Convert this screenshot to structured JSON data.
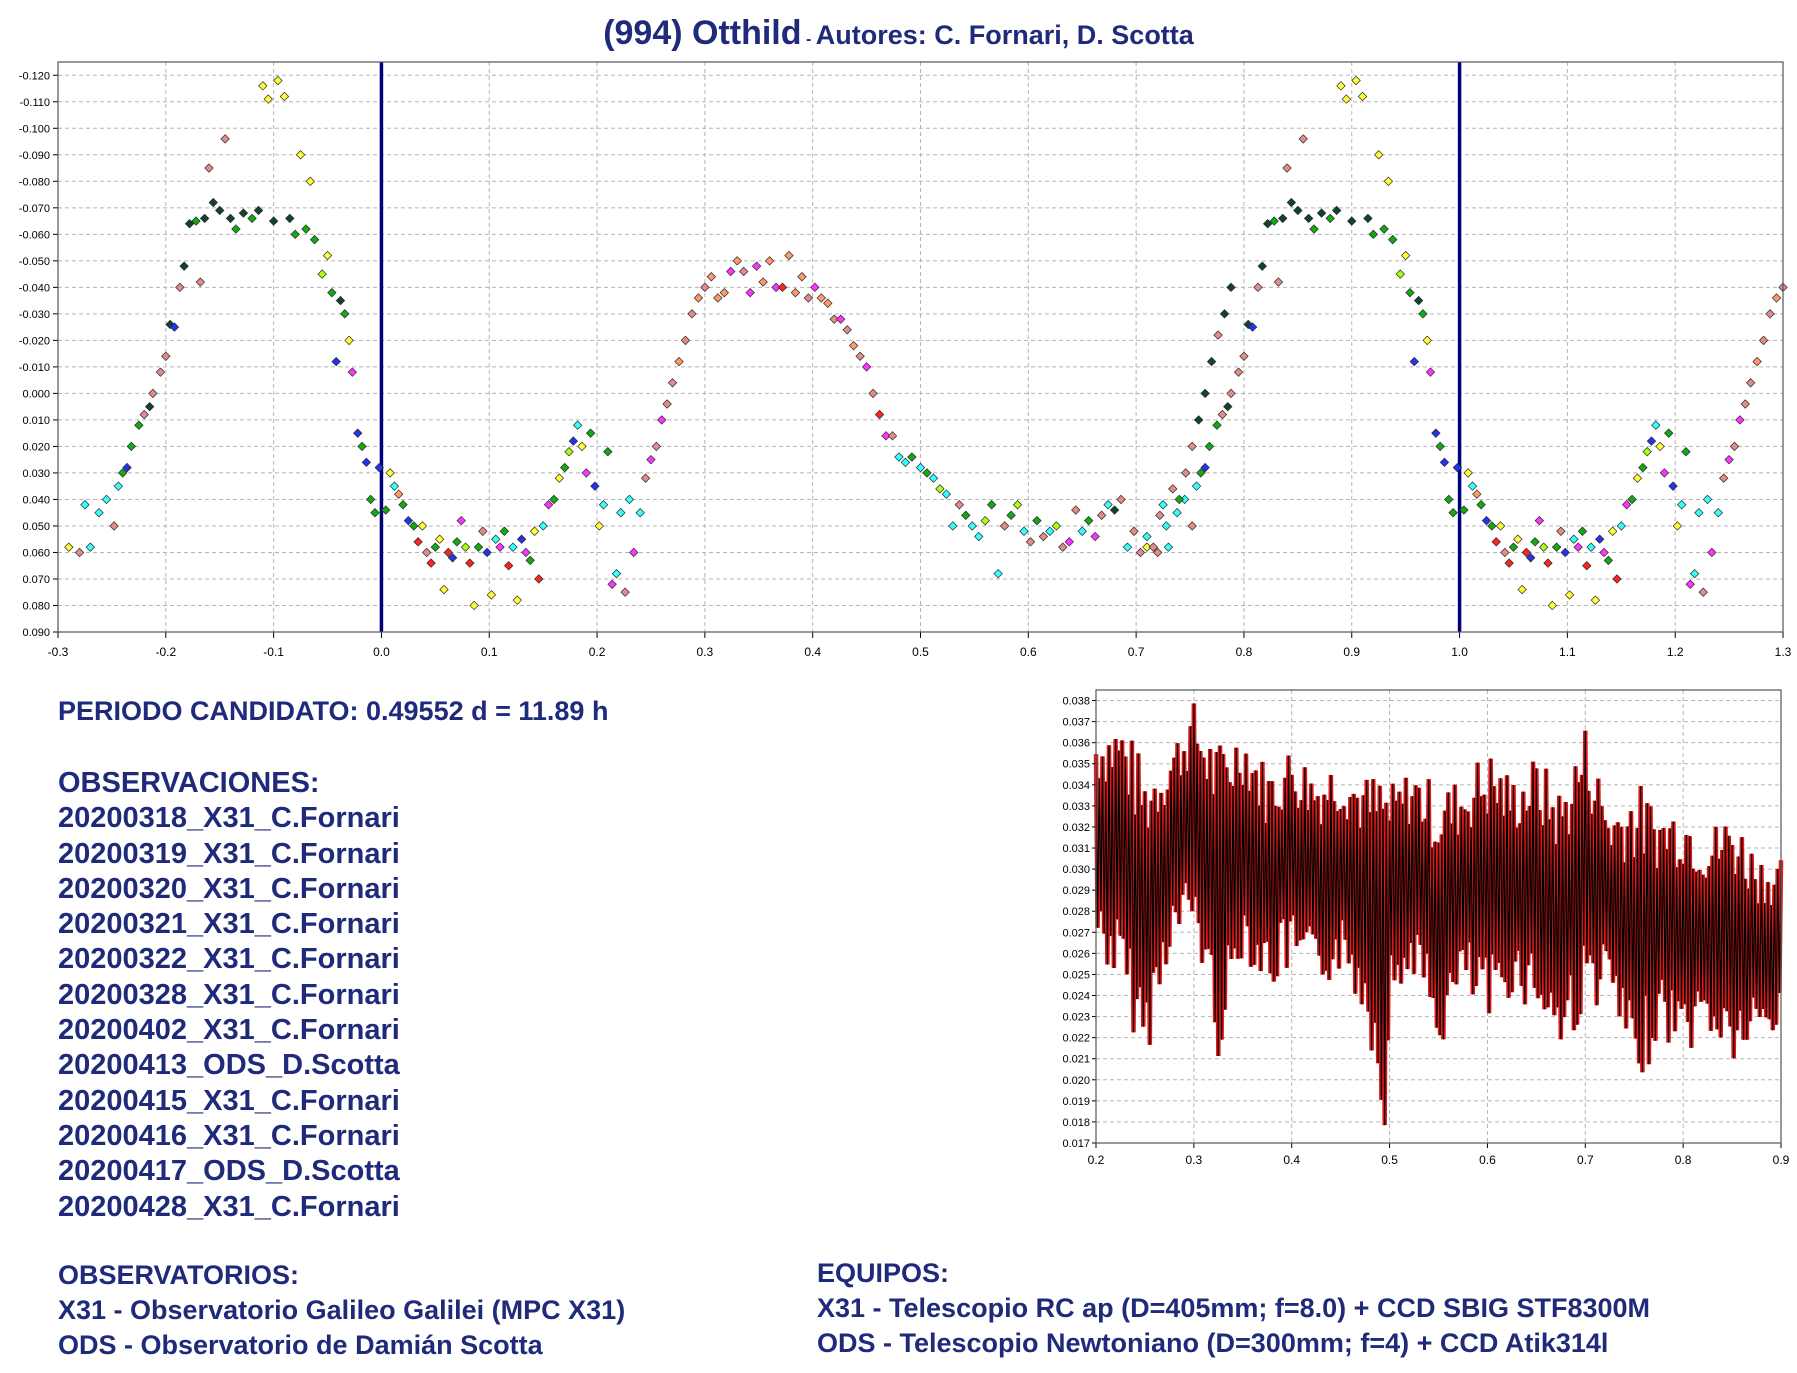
{
  "header": {
    "title_main": "(994) Otthild",
    "title_sub": "Autores: C. Fornari, D. Scotta"
  },
  "text": {
    "period": "PERIODO CANDIDATO: 0.49552 d = 11.89 h",
    "observations_heading": "OBSERVACIONES:",
    "observations": [
      "20200318_X31_C.Fornari",
      "20200319_X31_C.Fornari",
      "20200320_X31_C.Fornari",
      "20200321_X31_C.Fornari",
      "20200322_X31_C.Fornari",
      "20200328_X31_C.Fornari",
      "20200402_X31_C.Fornari",
      "20200413_ODS_D.Scotta",
      "20200415_X31_C.Fornari",
      "20200416_X31_C.Fornari",
      "20200417_ODS_D.Scotta",
      "20200428_X31_C.Fornari"
    ],
    "observatories_heading": "OBSERVATORIOS:",
    "observatories": [
      "X31 - Observatorio Galileo Galilei (MPC X31)",
      "ODS - Observatorio de Damián Scotta"
    ],
    "equipment_heading": "EQUIPOS:",
    "equipment": [
      "X31 - Telescopio RC ap (D=405mm; f=8.0) + CCD SBIG STF8300M",
      "ODS - Telescopio Newtoniano (D=300mm; f=4) + CCD Atik314l"
    ]
  },
  "colors": {
    "text": "#1f2a7a",
    "phase_marker_line": "#00007a",
    "series": [
      "#ffff33",
      "#ff33ff",
      "#33ffff",
      "#e38a8a",
      "#ff2222",
      "#2233ee",
      "#11aa11",
      "#11442e",
      "#ff9966",
      "#aaff11"
    ],
    "periodogram_points": "#e01a1a",
    "periodogram_line": "#000000"
  },
  "chart_data": [
    {
      "type": "scatter",
      "name": "phased-lightcurve",
      "xlim": [
        -0.3,
        1.3
      ],
      "ylim": [
        0.09,
        -0.125
      ],
      "y_inverted": true,
      "grid": true,
      "xticks": [
        -0.3,
        -0.2,
        -0.1,
        0.0,
        0.1,
        0.2,
        0.3,
        0.4,
        0.5,
        0.6,
        0.7,
        0.8,
        0.9,
        1.0,
        1.1,
        1.2,
        1.3
      ],
      "xtick_labels": [
        "-0.3",
        "-0.2",
        "-0.1",
        "0.0",
        "0.1",
        "0.2",
        "0.3",
        "0.4",
        "0.5",
        "0.6",
        "0.7",
        "0.8",
        "0.9",
        "1.0",
        "1.1",
        "1.2",
        "1.3"
      ],
      "yticks": [
        -0.12,
        -0.11,
        -0.1,
        -0.09,
        -0.08,
        -0.07,
        -0.06,
        -0.05,
        -0.04,
        -0.03,
        -0.02,
        -0.01,
        0.0,
        0.01,
        0.02,
        0.03,
        0.04,
        0.05,
        0.06,
        0.07,
        0.08,
        0.09
      ],
      "ytick_labels": [
        "-0.120",
        "-0.110",
        "-0.100",
        "-0.090",
        "-0.080",
        "-0.070",
        "-0.060",
        "-0.050",
        "-0.040",
        "-0.030",
        "-0.020",
        "-0.010",
        "0.000",
        "0.010",
        "0.020",
        "0.030",
        "0.040",
        "0.050",
        "0.060",
        "0.070",
        "0.080",
        "0.090"
      ],
      "vertical_markers": [
        0.0,
        1.0
      ],
      "period_repeat": 1.0,
      "points": [
        [
          -0.29,
          0.058,
          0
        ],
        [
          -0.28,
          0.06,
          3
        ],
        [
          -0.275,
          0.042,
          2
        ],
        [
          -0.27,
          0.058,
          2
        ],
        [
          -0.262,
          0.045,
          2
        ],
        [
          -0.255,
          0.04,
          2
        ],
        [
          -0.248,
          0.05,
          3
        ],
        [
          -0.244,
          0.035,
          2
        ],
        [
          -0.24,
          0.03,
          6
        ],
        [
          -0.236,
          0.028,
          5
        ],
        [
          -0.232,
          0.02,
          6
        ],
        [
          -0.225,
          0.012,
          6
        ],
        [
          -0.22,
          0.008,
          3
        ],
        [
          -0.215,
          0.005,
          7
        ],
        [
          -0.212,
          0.0,
          3
        ],
        [
          -0.205,
          -0.008,
          3
        ],
        [
          -0.2,
          -0.014,
          3
        ],
        [
          -0.196,
          -0.026,
          7
        ],
        [
          -0.192,
          -0.025,
          5
        ],
        [
          -0.187,
          -0.04,
          3
        ],
        [
          -0.183,
          -0.048,
          7
        ],
        [
          -0.178,
          -0.064,
          7
        ],
        [
          -0.172,
          -0.065,
          6
        ],
        [
          -0.168,
          -0.042,
          3
        ],
        [
          -0.164,
          -0.066,
          7
        ],
        [
          -0.16,
          -0.085,
          3
        ],
        [
          -0.156,
          -0.072,
          7
        ],
        [
          -0.15,
          -0.069,
          7
        ],
        [
          -0.145,
          -0.096,
          3
        ],
        [
          -0.14,
          -0.066,
          7
        ],
        [
          -0.135,
          -0.062,
          6
        ],
        [
          -0.128,
          -0.068,
          7
        ],
        [
          -0.12,
          -0.066,
          6
        ],
        [
          -0.114,
          -0.069,
          7
        ],
        [
          -0.11,
          -0.116,
          0
        ],
        [
          -0.105,
          -0.111,
          0
        ],
        [
          -0.1,
          -0.065,
          7
        ],
        [
          -0.096,
          -0.118,
          0
        ],
        [
          -0.09,
          -0.112,
          0
        ],
        [
          -0.085,
          -0.066,
          7
        ],
        [
          -0.08,
          -0.06,
          6
        ],
        [
          -0.075,
          -0.09,
          0
        ],
        [
          -0.07,
          -0.062,
          6
        ],
        [
          -0.066,
          -0.08,
          0
        ],
        [
          -0.062,
          -0.058,
          6
        ],
        [
          -0.055,
          -0.045,
          9
        ],
        [
          -0.05,
          -0.052,
          0
        ],
        [
          -0.046,
          -0.038,
          6
        ],
        [
          -0.042,
          -0.012,
          5
        ],
        [
          -0.038,
          -0.035,
          7
        ],
        [
          -0.034,
          -0.03,
          6
        ],
        [
          -0.03,
          -0.02,
          0
        ],
        [
          -0.027,
          -0.008,
          1
        ],
        [
          -0.022,
          0.015,
          5
        ],
        [
          -0.018,
          0.02,
          6
        ],
        [
          -0.014,
          0.026,
          5
        ],
        [
          -0.01,
          0.04,
          6
        ],
        [
          -0.006,
          0.045,
          6
        ],
        [
          -0.002,
          0.028,
          5
        ],
        [
          0.004,
          0.044,
          6
        ],
        [
          0.008,
          0.03,
          0
        ],
        [
          0.012,
          0.035,
          2
        ],
        [
          0.016,
          0.038,
          8
        ],
        [
          0.02,
          0.042,
          6
        ],
        [
          0.025,
          0.048,
          5
        ],
        [
          0.03,
          0.05,
          6
        ],
        [
          0.034,
          0.056,
          4
        ],
        [
          0.038,
          0.05,
          0
        ],
        [
          0.042,
          0.06,
          3
        ],
        [
          0.046,
          0.064,
          4
        ],
        [
          0.05,
          0.058,
          6
        ],
        [
          0.054,
          0.055,
          0
        ],
        [
          0.058,
          0.074,
          0
        ],
        [
          0.062,
          0.06,
          4
        ],
        [
          0.066,
          0.062,
          5
        ],
        [
          0.07,
          0.056,
          6
        ],
        [
          0.074,
          0.048,
          1
        ],
        [
          0.078,
          0.058,
          9
        ],
        [
          0.082,
          0.064,
          4
        ],
        [
          0.086,
          0.08,
          0
        ],
        [
          0.09,
          0.058,
          6
        ],
        [
          0.094,
          0.052,
          3
        ],
        [
          0.098,
          0.06,
          5
        ],
        [
          0.102,
          0.076,
          0
        ],
        [
          0.106,
          0.055,
          2
        ],
        [
          0.11,
          0.058,
          1
        ],
        [
          0.114,
          0.052,
          6
        ],
        [
          0.118,
          0.065,
          4
        ],
        [
          0.122,
          0.058,
          2
        ],
        [
          0.126,
          0.078,
          0
        ],
        [
          0.13,
          0.055,
          5
        ],
        [
          0.134,
          0.06,
          1
        ],
        [
          0.138,
          0.063,
          6
        ],
        [
          0.142,
          0.052,
          0
        ],
        [
          0.146,
          0.07,
          4
        ],
        [
          0.15,
          0.05,
          2
        ],
        [
          0.155,
          0.042,
          1
        ],
        [
          0.16,
          0.04,
          6
        ],
        [
          0.165,
          0.032,
          0
        ],
        [
          0.17,
          0.028,
          6
        ],
        [
          0.174,
          0.022,
          9
        ],
        [
          0.178,
          0.018,
          5
        ],
        [
          0.182,
          0.012,
          2
        ],
        [
          0.186,
          0.02,
          0
        ],
        [
          0.19,
          0.03,
          1
        ],
        [
          0.194,
          0.015,
          6
        ],
        [
          0.198,
          0.035,
          5
        ],
        [
          0.202,
          0.05,
          0
        ],
        [
          0.206,
          0.042,
          2
        ],
        [
          0.21,
          0.022,
          6
        ],
        [
          0.214,
          0.072,
          1
        ],
        [
          0.218,
          0.068,
          2
        ],
        [
          0.222,
          0.045,
          2
        ],
        [
          0.226,
          0.075,
          3
        ],
        [
          0.23,
          0.04,
          2
        ],
        [
          0.234,
          0.06,
          1
        ],
        [
          0.24,
          0.045,
          2
        ],
        [
          0.245,
          0.032,
          3
        ],
        [
          0.25,
          0.025,
          1
        ],
        [
          0.255,
          0.02,
          3
        ],
        [
          0.26,
          0.01,
          1
        ],
        [
          0.265,
          0.004,
          3
        ],
        [
          0.27,
          -0.004,
          3
        ],
        [
          0.276,
          -0.012,
          8
        ],
        [
          0.282,
          -0.02,
          3
        ],
        [
          0.288,
          -0.03,
          3
        ],
        [
          0.294,
          -0.036,
          8
        ],
        [
          0.3,
          -0.04,
          3
        ],
        [
          0.306,
          -0.044,
          8
        ],
        [
          0.312,
          -0.036,
          8
        ],
        [
          0.318,
          -0.038,
          8
        ],
        [
          0.324,
          -0.046,
          1
        ],
        [
          0.33,
          -0.05,
          8
        ],
        [
          0.336,
          -0.046,
          3
        ],
        [
          0.342,
          -0.038,
          1
        ],
        [
          0.348,
          -0.048,
          1
        ],
        [
          0.354,
          -0.042,
          8
        ],
        [
          0.36,
          -0.05,
          8
        ],
        [
          0.366,
          -0.04,
          1
        ],
        [
          0.372,
          -0.04,
          4
        ],
        [
          0.378,
          -0.052,
          8
        ],
        [
          0.384,
          -0.038,
          8
        ],
        [
          0.39,
          -0.044,
          8
        ],
        [
          0.396,
          -0.036,
          3
        ],
        [
          0.402,
          -0.04,
          1
        ],
        [
          0.408,
          -0.036,
          8
        ],
        [
          0.414,
          -0.034,
          8
        ],
        [
          0.42,
          -0.028,
          3
        ],
        [
          0.426,
          -0.028,
          1
        ],
        [
          0.432,
          -0.024,
          3
        ],
        [
          0.438,
          -0.018,
          8
        ],
        [
          0.444,
          -0.014,
          3
        ],
        [
          0.45,
          -0.01,
          1
        ],
        [
          0.456,
          0.0,
          3
        ],
        [
          0.462,
          0.008,
          4
        ],
        [
          0.468,
          0.016,
          1
        ],
        [
          0.474,
          0.016,
          3
        ],
        [
          0.48,
          0.024,
          2
        ],
        [
          0.486,
          0.026,
          2
        ],
        [
          0.492,
          0.024,
          6
        ],
        [
          0.5,
          0.028,
          2
        ],
        [
          0.506,
          0.03,
          6
        ],
        [
          0.512,
          0.032,
          2
        ],
        [
          0.518,
          0.036,
          9
        ],
        [
          0.524,
          0.038,
          2
        ],
        [
          0.53,
          0.05,
          2
        ],
        [
          0.536,
          0.042,
          3
        ],
        [
          0.542,
          0.046,
          6
        ],
        [
          0.548,
          0.05,
          2
        ],
        [
          0.554,
          0.054,
          2
        ],
        [
          0.56,
          0.048,
          9
        ],
        [
          0.566,
          0.042,
          6
        ],
        [
          0.572,
          0.068,
          2
        ],
        [
          0.578,
          0.05,
          3
        ],
        [
          0.584,
          0.046,
          6
        ],
        [
          0.59,
          0.042,
          9
        ],
        [
          0.596,
          0.052,
          2
        ],
        [
          0.602,
          0.056,
          3
        ],
        [
          0.608,
          0.048,
          6
        ],
        [
          0.614,
          0.054,
          3
        ],
        [
          0.62,
          0.052,
          2
        ],
        [
          0.626,
          0.05,
          9
        ],
        [
          0.632,
          0.058,
          3
        ],
        [
          0.638,
          0.056,
          1
        ],
        [
          0.644,
          0.044,
          3
        ],
        [
          0.65,
          0.052,
          2
        ],
        [
          0.656,
          0.048,
          6
        ],
        [
          0.662,
          0.054,
          1
        ],
        [
          0.668,
          0.046,
          3
        ],
        [
          0.674,
          0.042,
          2
        ],
        [
          0.68,
          0.044,
          7
        ],
        [
          0.686,
          0.04,
          3
        ],
        [
          0.692,
          0.058,
          2
        ],
        [
          0.698,
          0.052,
          3
        ],
        [
          0.704,
          0.06,
          3
        ],
        [
          0.71,
          0.054,
          2
        ],
        [
          0.716,
          0.058,
          3
        ],
        [
          0.722,
          0.046,
          3
        ],
        [
          0.728,
          0.05,
          2
        ],
        [
          0.734,
          0.036,
          3
        ],
        [
          0.74,
          0.04,
          6
        ],
        [
          0.746,
          0.03,
          3
        ],
        [
          0.752,
          0.02,
          3
        ],
        [
          0.758,
          0.01,
          7
        ],
        [
          0.764,
          0.0,
          7
        ],
        [
          0.77,
          -0.012,
          7
        ],
        [
          0.776,
          -0.022,
          3
        ],
        [
          0.782,
          -0.03,
          7
        ],
        [
          0.788,
          -0.04,
          7
        ]
      ]
    },
    {
      "type": "line",
      "name": "periodogram",
      "xlim": [
        0.2,
        0.9
      ],
      "ylim": [
        0.017,
        0.0385
      ],
      "grid": true,
      "xticks": [
        0.2,
        0.3,
        0.4,
        0.5,
        0.6,
        0.7,
        0.8,
        0.9
      ],
      "xtick_labels": [
        "0.2",
        "0.3",
        "0.4",
        "0.5",
        "0.6",
        "0.7",
        "0.8",
        "0.9"
      ],
      "yticks": [
        0.017,
        0.018,
        0.019,
        0.02,
        0.021,
        0.022,
        0.023,
        0.024,
        0.025,
        0.026,
        0.027,
        0.028,
        0.029,
        0.03,
        0.031,
        0.032,
        0.033,
        0.034,
        0.035,
        0.036,
        0.037,
        0.038
      ],
      "ytick_labels": [
        "0.017",
        "0.018",
        "0.019",
        "0.020",
        "0.021",
        "0.022",
        "0.023",
        "0.024",
        "0.025",
        "0.026",
        "0.027",
        "0.028",
        "0.029",
        "0.030",
        "0.031",
        "0.032",
        "0.033",
        "0.034",
        "0.035",
        "0.036",
        "0.037",
        "0.038"
      ],
      "x": [
        0.2,
        0.225,
        0.25,
        0.275,
        0.3,
        0.325,
        0.33,
        0.35,
        0.375,
        0.4,
        0.425,
        0.45,
        0.475,
        0.495,
        0.5,
        0.525,
        0.55,
        0.575,
        0.6,
        0.625,
        0.65,
        0.675,
        0.7,
        0.725,
        0.75,
        0.775,
        0.8,
        0.825,
        0.85,
        0.875,
        0.9
      ],
      "y_max": [
        0.037,
        0.0375,
        0.035,
        0.036,
        0.038,
        0.036,
        0.0365,
        0.037,
        0.035,
        0.036,
        0.035,
        0.0355,
        0.0345,
        0.035,
        0.034,
        0.035,
        0.034,
        0.0345,
        0.036,
        0.0345,
        0.0355,
        0.034,
        0.037,
        0.033,
        0.0345,
        0.033,
        0.0335,
        0.032,
        0.033,
        0.031,
        0.0305
      ],
      "y_min": [
        0.026,
        0.024,
        0.0205,
        0.026,
        0.027,
        0.021,
        0.0215,
        0.026,
        0.024,
        0.025,
        0.024,
        0.025,
        0.023,
        0.0178,
        0.023,
        0.025,
        0.021,
        0.024,
        0.022,
        0.024,
        0.023,
        0.021,
        0.023,
        0.024,
        0.0188,
        0.022,
        0.021,
        0.022,
        0.0205,
        0.0215,
        0.022
      ]
    }
  ]
}
